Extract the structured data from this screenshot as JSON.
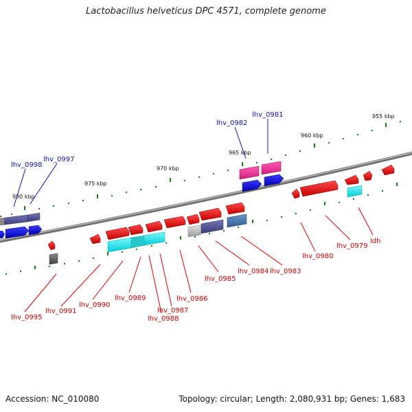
{
  "title": "Lactobacillus helveticus DPC 4571, complete genome",
  "accession": "Accession: NC_010080",
  "summary": "Topology: circular; Length: 2,080,931 bp; Genes: 1,683",
  "scale_labels": [
    "955 kbp",
    "960 kbp",
    "965 kbp",
    "970 kbp",
    "975 kbp",
    "980 kbp"
  ],
  "gene_labels_top": [
    "lhv_0981",
    "lhv_0982",
    "lhv_0997",
    "lhv_0998"
  ],
  "gene_labels_bottom": [
    "ldh",
    "lhv_0979",
    "lhv_0980",
    "lhv_0983",
    "lhv_0984",
    "lhv_0985",
    "lhv_0986",
    "lhv_0987",
    "lhv_0988",
    "lhv_0989",
    "lhv_0990",
    "lhv_0991",
    "lhv_0995"
  ],
  "colors": {
    "top_label": "#1010b0",
    "bottom_label": "#cc0000",
    "backbone": "#8a8a8a",
    "tick": "#1a7a1a"
  }
}
